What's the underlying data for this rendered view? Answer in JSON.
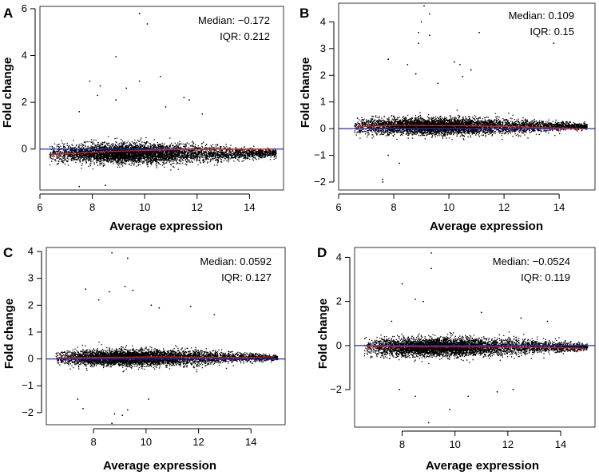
{
  "chart_data": [
    {
      "type": "scatter",
      "panel": "A",
      "xlabel": "Average expression",
      "ylabel": "Fold change",
      "xlim": [
        6,
        15.3
      ],
      "ylim": [
        -1.75,
        6.1
      ],
      "xticks": [
        6,
        8,
        10,
        12,
        14
      ],
      "yticks": [
        0,
        2,
        4,
        6
      ],
      "median_label": "Median: −0.172",
      "iqr_label": "IQR: 0.212",
      "baseline_color": "#1f2fd6",
      "trend_color": "#e0202a",
      "trend": [
        [
          6.4,
          -0.23
        ],
        [
          7,
          -0.2
        ],
        [
          8,
          -0.14
        ],
        [
          9,
          -0.09
        ],
        [
          10,
          -0.06
        ],
        [
          11,
          -0.03
        ],
        [
          12,
          -0.01
        ],
        [
          13,
          0.0
        ],
        [
          14,
          0.0
        ],
        [
          14.9,
          0.0
        ]
      ],
      "cloud": {
        "x_min": 6.35,
        "x_max": 15.0,
        "center": -0.17,
        "spread": 0.2
      },
      "outliers": [
        [
          9.8,
          5.8
        ],
        [
          10.1,
          5.35
        ],
        [
          8.9,
          3.95
        ],
        [
          7.9,
          2.9
        ],
        [
          8.3,
          2.7
        ],
        [
          9.8,
          2.9
        ],
        [
          10.6,
          3.1
        ],
        [
          11.5,
          2.2
        ],
        [
          7.5,
          1.6
        ],
        [
          8.9,
          2.1
        ],
        [
          10.8,
          1.8
        ],
        [
          11.7,
          2.1
        ],
        [
          12.2,
          1.5
        ],
        [
          8.2,
          2.3
        ],
        [
          9.3,
          2.6
        ],
        [
          7.5,
          -1.6
        ],
        [
          8.5,
          -1.55
        ]
      ]
    },
    {
      "type": "scatter",
      "panel": "B",
      "xlabel": "Average expression",
      "ylabel": "Fold change",
      "xlim": [
        6,
        15.3
      ],
      "ylim": [
        -2.3,
        4.7
      ],
      "xticks": [
        6,
        8,
        10,
        12,
        14
      ],
      "yticks": [
        -2,
        -1,
        0,
        1,
        2,
        3,
        4
      ],
      "median_label": "Median: 0.109",
      "iqr_label": "IQR: 0.15",
      "baseline_color": "#1f2fd6",
      "trend_color": "#e0202a",
      "trend": [
        [
          6.6,
          0.05
        ],
        [
          7,
          0.08
        ],
        [
          8,
          0.12
        ],
        [
          9,
          0.12
        ],
        [
          10,
          0.11
        ],
        [
          11,
          0.1
        ],
        [
          12,
          0.08
        ],
        [
          13,
          0.05
        ],
        [
          14,
          0.02
        ],
        [
          14.9,
          0.0
        ]
      ],
      "cloud": {
        "x_min": 6.55,
        "x_max": 15.0,
        "center": 0.1,
        "spread": 0.15
      },
      "outliers": [
        [
          9.1,
          4.6
        ],
        [
          9.3,
          4.3
        ],
        [
          9.0,
          4.0
        ],
        [
          8.9,
          3.6
        ],
        [
          9.3,
          3.5
        ],
        [
          11.1,
          3.6
        ],
        [
          8.9,
          3.2
        ],
        [
          13.8,
          3.2
        ],
        [
          10.2,
          2.5
        ],
        [
          10.4,
          2.4
        ],
        [
          7.8,
          2.6
        ],
        [
          8.5,
          2.4
        ],
        [
          8.8,
          2.05
        ],
        [
          10.8,
          2.2
        ],
        [
          9.6,
          1.7
        ],
        [
          10.5,
          1.95
        ],
        [
          7.6,
          -1.9
        ],
        [
          7.6,
          -2.0
        ],
        [
          8.2,
          -1.3
        ],
        [
          7.8,
          -1.0
        ]
      ]
    },
    {
      "type": "scatter",
      "panel": "C",
      "xlabel": "Average expression",
      "ylabel": "Fold change",
      "xlim": [
        6.2,
        15.3
      ],
      "ylim": [
        -2.45,
        4.15
      ],
      "xticks": [
        8,
        10,
        12,
        14
      ],
      "yticks": [
        -2,
        -1,
        0,
        1,
        2,
        3,
        4
      ],
      "median_label": "Median: 0.0592",
      "iqr_label": "IQR: 0.127",
      "baseline_color": "#1f2fd6",
      "trend_color": "#e0202a",
      "trend": [
        [
          6.6,
          0.03
        ],
        [
          7,
          0.04
        ],
        [
          8,
          0.05
        ],
        [
          9,
          0.06
        ],
        [
          10,
          0.07
        ],
        [
          11,
          0.07
        ],
        [
          12,
          0.06
        ],
        [
          13,
          0.05
        ],
        [
          14,
          0.06
        ],
        [
          14.9,
          0.08
        ]
      ],
      "cloud": {
        "x_min": 6.55,
        "x_max": 15.0,
        "center": 0.06,
        "spread": 0.14
      },
      "outliers": [
        [
          8.7,
          3.95
        ],
        [
          9.3,
          3.75
        ],
        [
          9.2,
          2.7
        ],
        [
          7.7,
          2.6
        ],
        [
          8.2,
          2.2
        ],
        [
          8.6,
          2.5
        ],
        [
          9.5,
          2.55
        ],
        [
          10.2,
          2.0
        ],
        [
          10.5,
          1.9
        ],
        [
          11.7,
          1.95
        ],
        [
          12.6,
          1.65
        ],
        [
          7.4,
          -1.5
        ],
        [
          7.6,
          -1.85
        ],
        [
          8.8,
          -2.05
        ],
        [
          9.1,
          -2.1
        ],
        [
          8.7,
          -2.4
        ],
        [
          9.3,
          -1.9
        ],
        [
          10.1,
          -1.5
        ]
      ]
    },
    {
      "type": "scatter",
      "panel": "D",
      "xlabel": "Average expression",
      "ylabel": "Fold change",
      "xlim": [
        6.2,
        15.3
      ],
      "ylim": [
        -3.7,
        4.45
      ],
      "xticks": [
        8,
        10,
        12,
        14
      ],
      "yticks": [
        -2,
        0,
        2,
        4
      ],
      "median_label": "Median: −0.0524",
      "iqr_label": "IQR: 0.119",
      "baseline_color": "#1f2fd6",
      "trend_color": "#e0202a",
      "trend": [
        [
          6.6,
          -0.02
        ],
        [
          7,
          -0.03
        ],
        [
          8,
          -0.05
        ],
        [
          9,
          -0.06
        ],
        [
          10,
          -0.06
        ],
        [
          11,
          -0.06
        ],
        [
          12,
          -0.07
        ],
        [
          13,
          -0.08
        ],
        [
          14,
          -0.1
        ],
        [
          14.9,
          -0.12
        ]
      ],
      "cloud": {
        "x_min": 6.55,
        "x_max": 15.0,
        "center": -0.05,
        "spread": 0.2
      },
      "outliers": [
        [
          9.1,
          4.2
        ],
        [
          9.1,
          3.5
        ],
        [
          8.0,
          2.8
        ],
        [
          8.5,
          2.1
        ],
        [
          8.8,
          2.0
        ],
        [
          11.0,
          1.5
        ],
        [
          12.5,
          1.25
        ],
        [
          13.5,
          1.1
        ],
        [
          7.6,
          1.1
        ],
        [
          9.0,
          -3.5
        ],
        [
          9.8,
          -2.9
        ],
        [
          8.5,
          -2.3
        ],
        [
          10.5,
          -2.3
        ],
        [
          12.2,
          -2.0
        ],
        [
          7.9,
          -2.0
        ],
        [
          11.6,
          -2.1
        ]
      ]
    }
  ]
}
